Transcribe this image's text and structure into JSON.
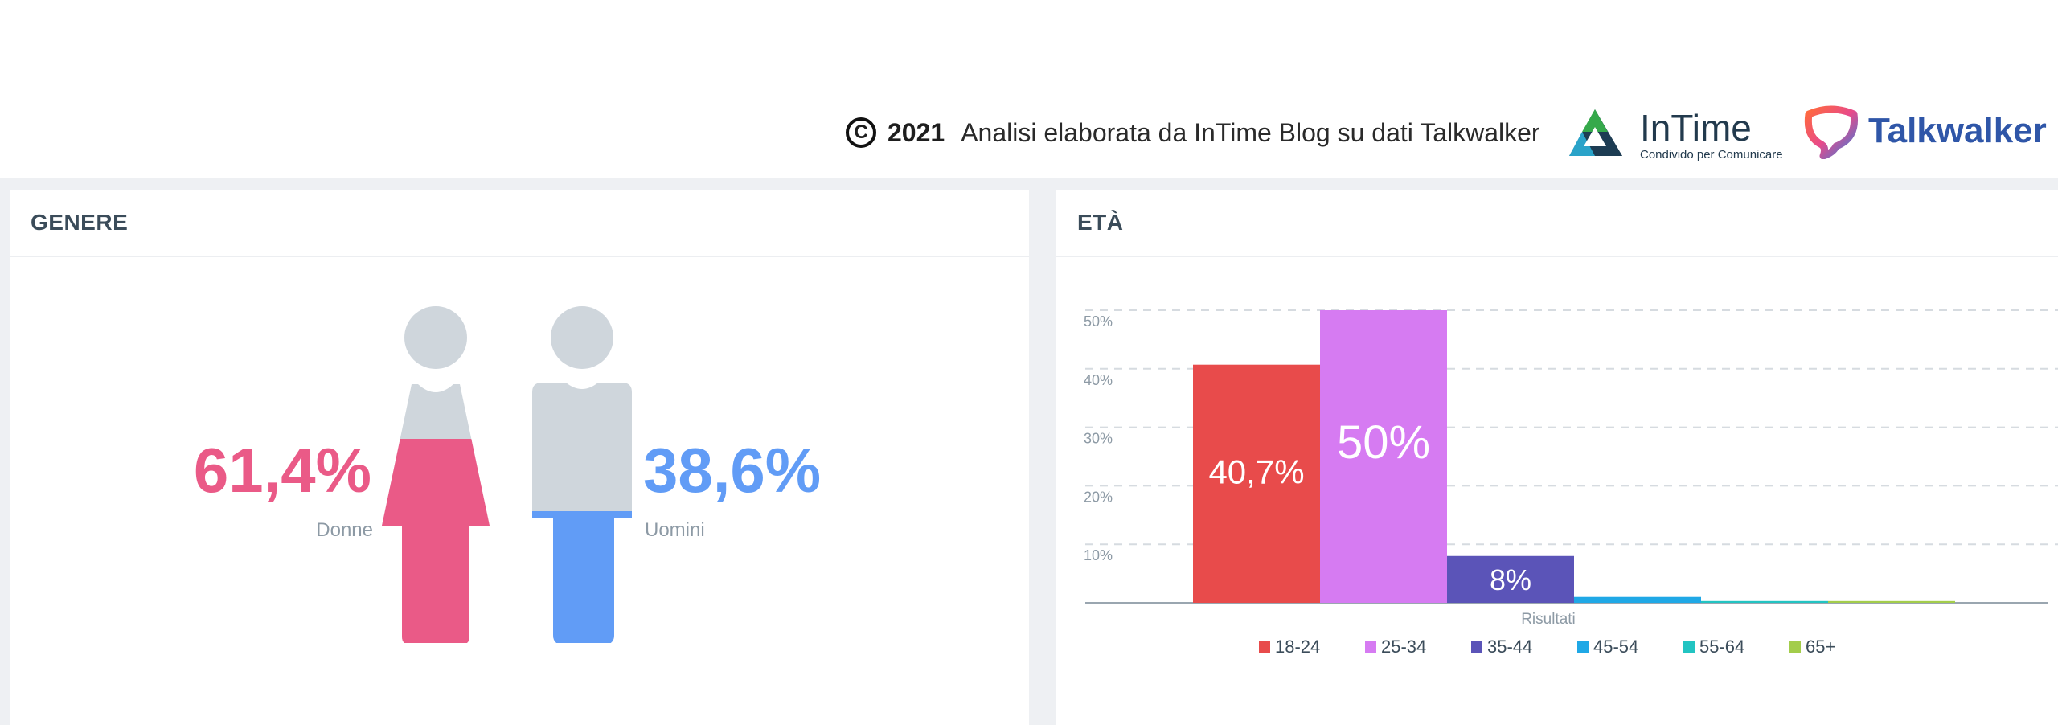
{
  "credit": {
    "year": "2021",
    "text": "Analisi elaborata da InTime Blog su dati Talkwalker"
  },
  "logos": {
    "intime_name": "InTime",
    "intime_tagline": "Condivido per Comunicare",
    "talkwalker_name": "Talkwalker"
  },
  "gender_panel": {
    "title": "GENERE",
    "female_value": "61,4%",
    "female_label": "Donne",
    "male_value": "38,6%",
    "male_label": "Uomini",
    "female_color": "#ea5a87",
    "male_color": "#619cf6",
    "inactive_color": "#cfd6dc"
  },
  "age_panel": {
    "title": "ETÀ"
  },
  "chart_data": [
    {
      "type": "pie",
      "title": "GENERE",
      "categories": [
        "Donne",
        "Uomini"
      ],
      "values": [
        61.4,
        38.6
      ],
      "value_labels": [
        "61,4%",
        "38,6%"
      ],
      "colors": [
        "#ea5a87",
        "#619cf6"
      ]
    },
    {
      "type": "bar",
      "title": "ETÀ",
      "xlabel": "Risultati",
      "ylabel": "",
      "ylim": [
        0,
        50
      ],
      "yticks": [
        10,
        20,
        30,
        40,
        50
      ],
      "ytick_labels": [
        "10%",
        "20%",
        "30%",
        "40%",
        "50%"
      ],
      "grid": true,
      "legend": "bottom",
      "series": [
        {
          "name": "18-24",
          "values": [
            40.7
          ],
          "color": "#e84b4b",
          "label": "40,7%"
        },
        {
          "name": "25-34",
          "values": [
            50
          ],
          "color": "#d67bf2",
          "label": "50%"
        },
        {
          "name": "35-44",
          "values": [
            8
          ],
          "color": "#5b54b8",
          "label": "8%"
        },
        {
          "name": "45-54",
          "values": [
            1.0
          ],
          "color": "#1fa8e6",
          "label": ""
        },
        {
          "name": "55-64",
          "values": [
            0.3
          ],
          "color": "#22c4c2",
          "label": ""
        },
        {
          "name": "65+",
          "values": [
            0.3
          ],
          "color": "#a3cd4b",
          "label": ""
        }
      ]
    }
  ]
}
